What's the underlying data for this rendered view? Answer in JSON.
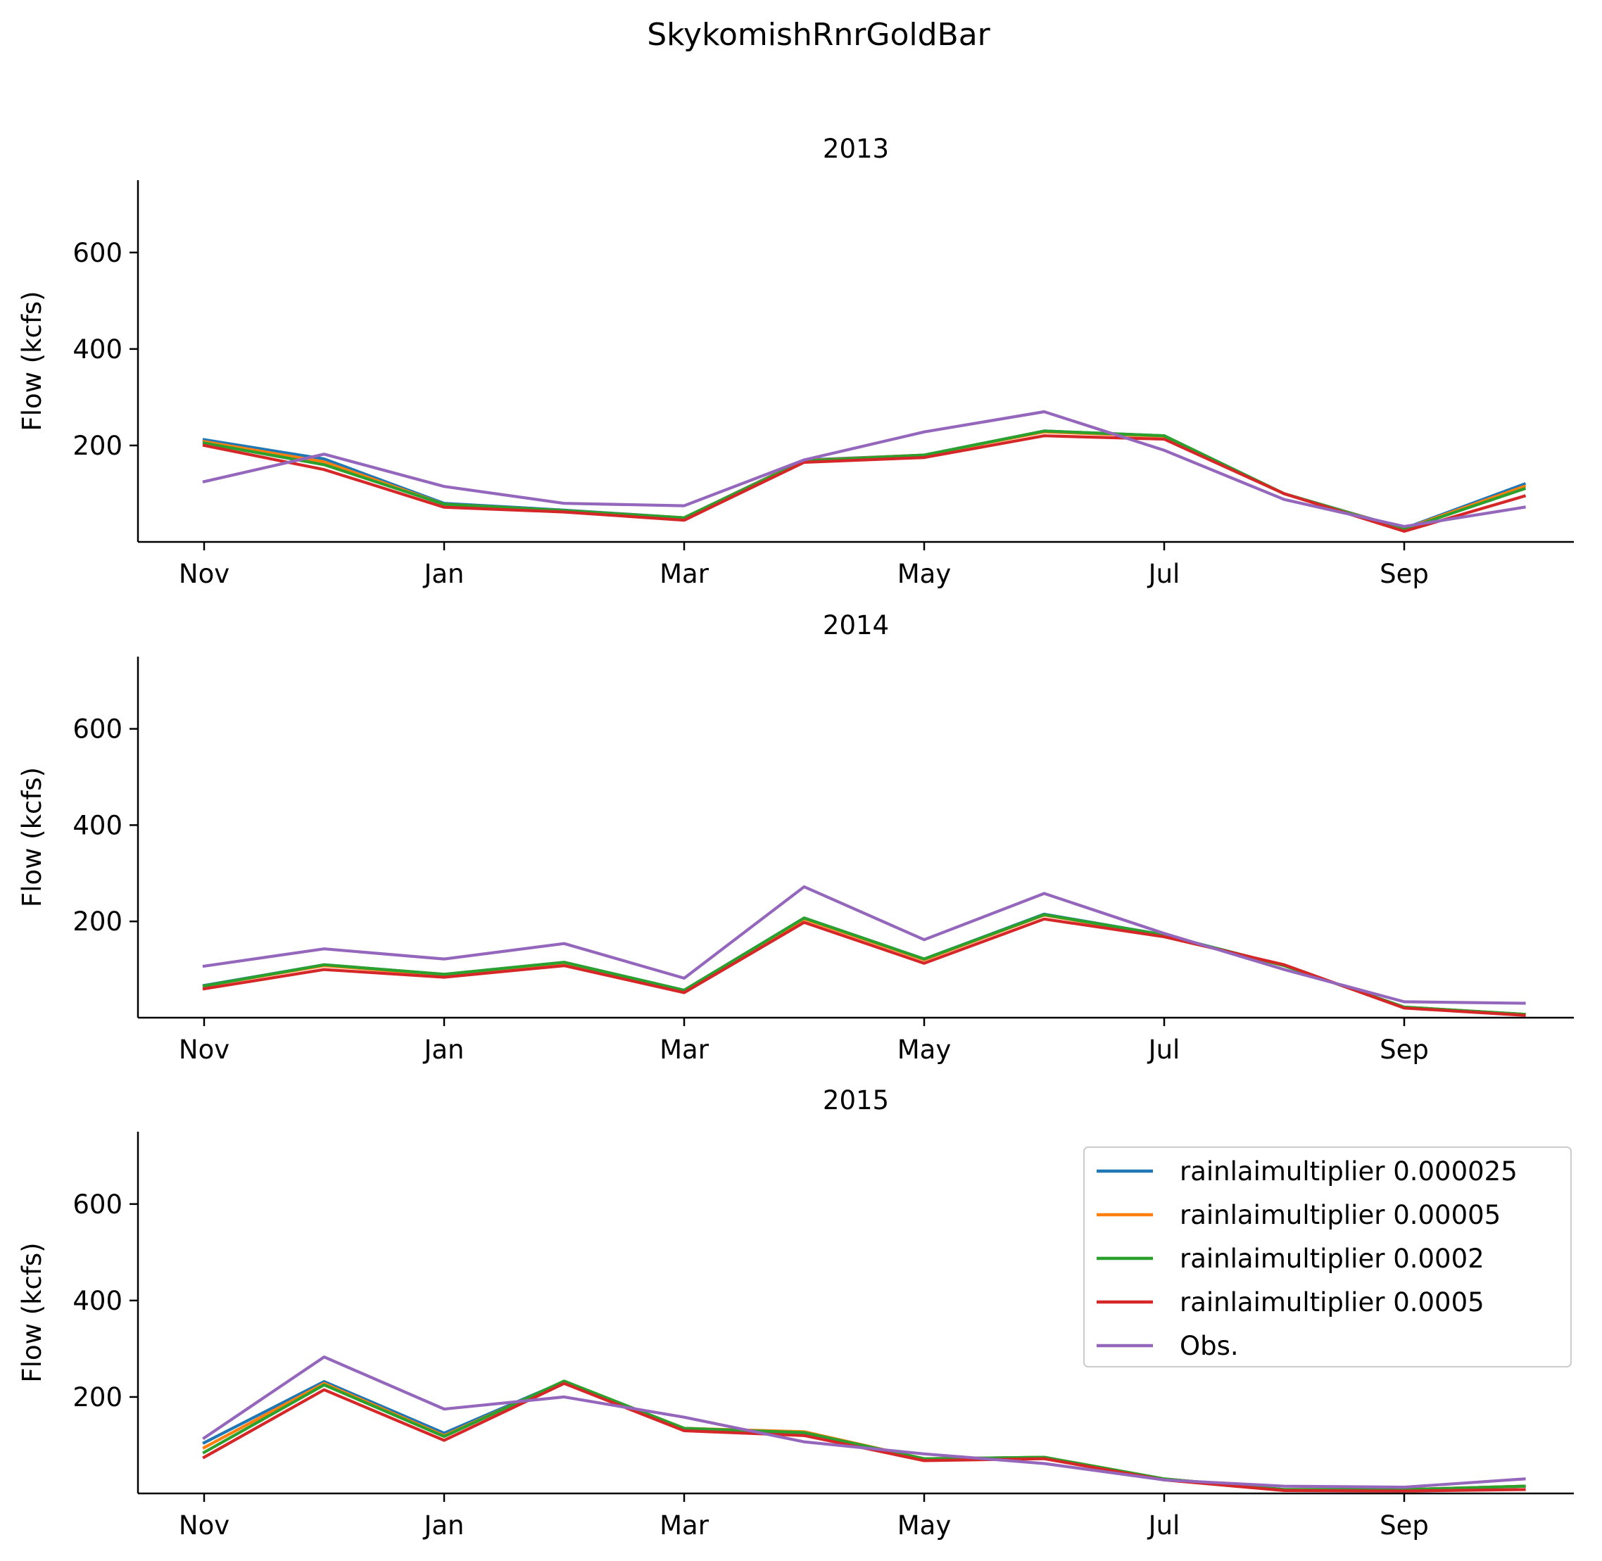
{
  "figure_title": "SkykomishRnrGoldBar",
  "chart_data": [
    {
      "type": "line",
      "title": "2013",
      "xlabel": "",
      "ylabel": "Flow (kcfs)",
      "ylim": [
        0,
        750
      ],
      "x_ticks": [
        "Nov",
        "Jan",
        "Mar",
        "May",
        "Jul",
        "Sep"
      ],
      "x": [
        "Nov",
        "Dec",
        "Jan",
        "Feb",
        "Mar",
        "Apr",
        "May",
        "Jun",
        "Jul",
        "Aug",
        "Sep",
        "Oct"
      ],
      "y_ticks": [
        200,
        400,
        600
      ],
      "legend": false,
      "grid": false,
      "series": [
        {
          "name": "rainlaimultiplier 0.000025",
          "color": "#1f77b4",
          "values": [
            212,
            172,
            80,
            66,
            50,
            170,
            180,
            230,
            220,
            100,
            28,
            120
          ]
        },
        {
          "name": "rainlaimultiplier 0.00005",
          "color": "#ff7f0e",
          "values": [
            208,
            166,
            78,
            65,
            50,
            169,
            180,
            228,
            219,
            100,
            27,
            115
          ]
        },
        {
          "name": "rainlaimultiplier 0.0002",
          "color": "#2ca02c",
          "values": [
            205,
            160,
            78,
            65,
            50,
            168,
            180,
            230,
            220,
            100,
            26,
            110
          ]
        },
        {
          "name": "rainlaimultiplier 0.0005",
          "color": "#d62728",
          "values": [
            200,
            150,
            72,
            62,
            45,
            165,
            175,
            220,
            213,
            100,
            22,
            95
          ]
        },
        {
          "name": "Obs.",
          "color": "#9467bd",
          "values": [
            125,
            182,
            115,
            80,
            75,
            170,
            228,
            270,
            190,
            88,
            32,
            72
          ]
        }
      ]
    },
    {
      "type": "line",
      "title": "2014",
      "xlabel": "",
      "ylabel": "Flow (kcfs)",
      "ylim": [
        0,
        750
      ],
      "x_ticks": [
        "Nov",
        "Jan",
        "Mar",
        "May",
        "Jul",
        "Sep"
      ],
      "x": [
        "Nov",
        "Dec",
        "Jan",
        "Feb",
        "Mar",
        "Apr",
        "May",
        "Jun",
        "Jul",
        "Aug",
        "Sep",
        "Oct"
      ],
      "y_ticks": [
        200,
        400,
        600
      ],
      "legend": false,
      "grid": false,
      "series": [
        {
          "name": "rainlaimultiplier 0.000025",
          "color": "#1f77b4",
          "values": [
            67,
            110,
            90,
            115,
            57,
            207,
            122,
            215,
            172,
            108,
            22,
            7
          ]
        },
        {
          "name": "rainlaimultiplier 0.00005",
          "color": "#ff7f0e",
          "values": [
            66,
            108,
            89,
            114,
            56,
            205,
            120,
            213,
            171,
            108,
            22,
            7
          ]
        },
        {
          "name": "rainlaimultiplier 0.0002",
          "color": "#2ca02c",
          "values": [
            66,
            110,
            90,
            115,
            57,
            207,
            122,
            214,
            172,
            108,
            22,
            7
          ]
        },
        {
          "name": "rainlaimultiplier 0.0005",
          "color": "#d62728",
          "values": [
            60,
            100,
            84,
            108,
            52,
            198,
            113,
            205,
            168,
            110,
            20,
            5
          ]
        },
        {
          "name": "Obs.",
          "color": "#9467bd",
          "values": [
            107,
            143,
            122,
            154,
            82,
            272,
            162,
            258,
            175,
            100,
            33,
            30
          ]
        }
      ]
    },
    {
      "type": "line",
      "title": "2015",
      "xlabel": "",
      "ylabel": "Flow (kcfs)",
      "ylim": [
        0,
        750
      ],
      "x_ticks": [
        "Nov",
        "Jan",
        "Mar",
        "May",
        "Jul",
        "Sep"
      ],
      "x": [
        "Nov",
        "Dec",
        "Jan",
        "Feb",
        "Mar",
        "Apr",
        "May",
        "Jun",
        "Jul",
        "Aug",
        "Sep",
        "Oct"
      ],
      "y_ticks": [
        200,
        400,
        600
      ],
      "legend": true,
      "legend_position": "upper right",
      "grid": false,
      "series": [
        {
          "name": "rainlaimultiplier 0.000025",
          "color": "#1f77b4",
          "values": [
            105,
            232,
            125,
            232,
            135,
            125,
            72,
            75,
            30,
            8,
            8,
            15
          ]
        },
        {
          "name": "rainlaimultiplier 0.00005",
          "color": "#ff7f0e",
          "values": [
            95,
            228,
            120,
            232,
            135,
            128,
            72,
            75,
            30,
            8,
            8,
            15
          ]
        },
        {
          "name": "rainlaimultiplier 0.0002",
          "color": "#2ca02c",
          "values": [
            85,
            225,
            118,
            233,
            135,
            126,
            72,
            75,
            30,
            8,
            8,
            15
          ]
        },
        {
          "name": "rainlaimultiplier 0.0005",
          "color": "#d62728",
          "values": [
            75,
            215,
            110,
            228,
            130,
            120,
            68,
            72,
            28,
            6,
            5,
            8
          ]
        },
        {
          "name": "Obs.",
          "color": "#9467bd",
          "values": [
            115,
            283,
            175,
            200,
            158,
            107,
            82,
            62,
            28,
            15,
            13,
            30
          ]
        }
      ]
    }
  ]
}
